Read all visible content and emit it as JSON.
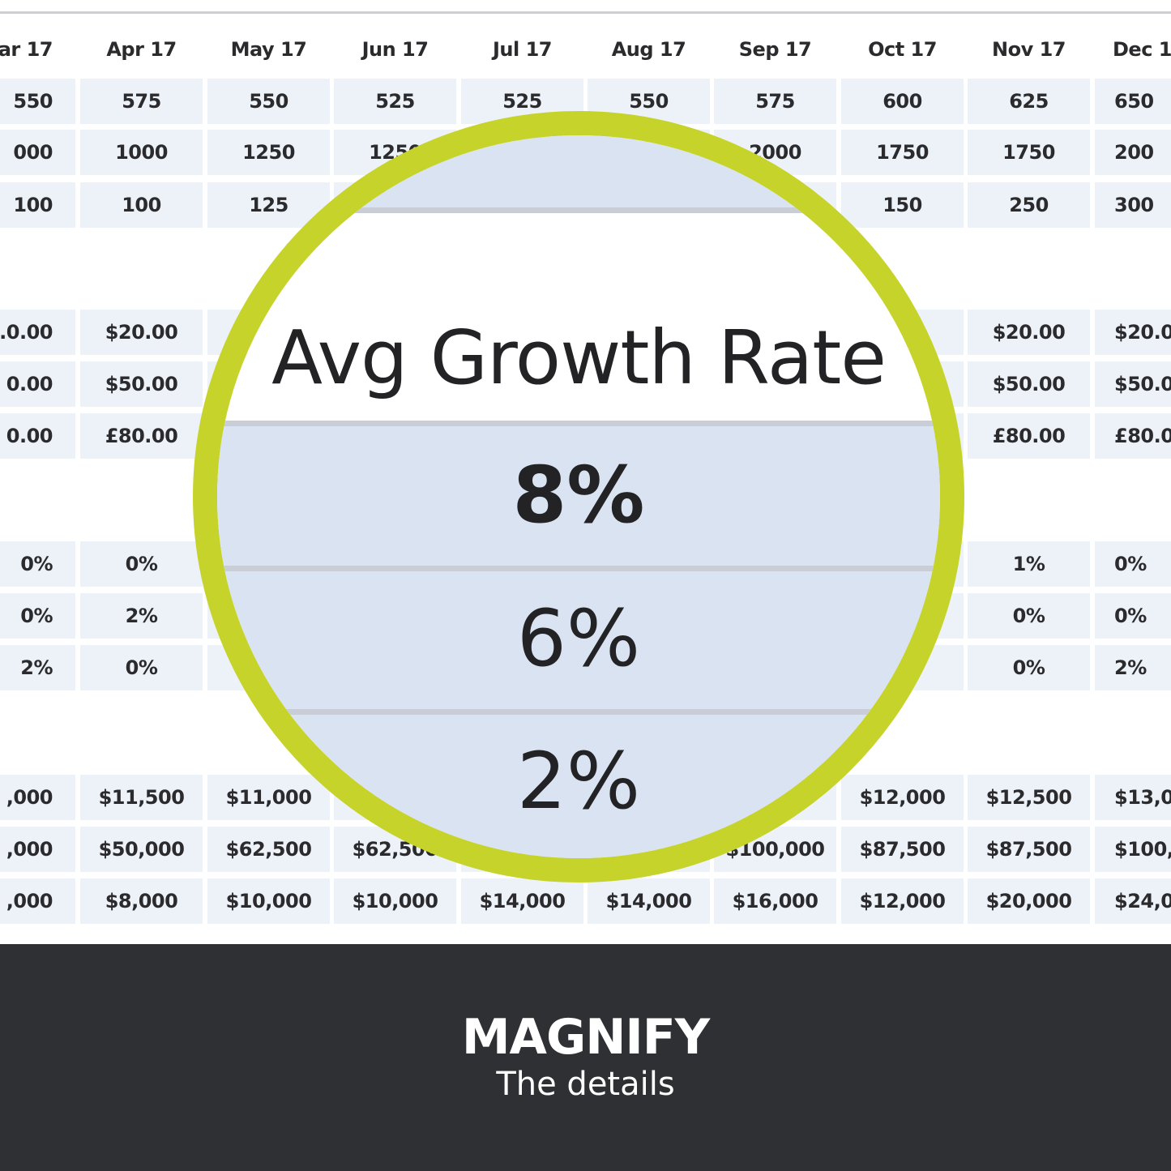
{
  "table": {
    "headers": [
      "ar 17",
      "Apr 17",
      "May 17",
      "Jun 17",
      "Jul 17",
      "Aug 17",
      "Sep 17",
      "Oct 17",
      "Nov 17",
      "Dec 1"
    ],
    "rows": [
      [
        "550",
        "575",
        "550",
        "525",
        "525",
        "550",
        "575",
        "600",
        "625",
        "650"
      ],
      [
        "000",
        "1000",
        "1250",
        "1250",
        "",
        "",
        "2000",
        "1750",
        "1750",
        "200"
      ],
      [
        "100",
        "100",
        "125",
        "",
        "",
        "",
        "",
        "150",
        "250",
        "300"
      ],
      [
        ".0.00",
        "$20.00",
        "",
        "",
        "",
        "",
        "",
        "",
        "$20.00",
        "$20.0"
      ],
      [
        "0.00",
        "$50.00",
        "",
        "",
        "",
        "",
        "",
        "",
        "$50.00",
        "$50.0"
      ],
      [
        "0.00",
        "£80.00",
        "",
        "",
        "",
        "",
        "",
        "",
        "£80.00",
        "£80.0"
      ],
      [
        "0%",
        "0%",
        "",
        "",
        "",
        "",
        "",
        "",
        "1%",
        "0%"
      ],
      [
        "0%",
        "2%",
        "",
        "",
        "",
        "",
        "",
        "",
        "0%",
        "0%"
      ],
      [
        "2%",
        "0%",
        "",
        "",
        "",
        "",
        "",
        "",
        "0%",
        "2%"
      ],
      [
        ",000",
        "$11,500",
        "$11,000",
        "",
        "",
        "",
        "",
        "$12,000",
        "$12,500",
        "$13,0"
      ],
      [
        ",000",
        "$50,000",
        "$62,500",
        "$62,500",
        "",
        "",
        "$100,000",
        "$87,500",
        "$87,500",
        "$100,0"
      ],
      [
        ",000",
        "$8,000",
        "$10,000",
        "$10,000",
        "$14,000",
        "$14,000",
        "$16,000",
        "$12,000",
        "$20,000",
        "$24,0"
      ]
    ]
  },
  "magnifier": {
    "title": "Avg Growth Rate",
    "values": [
      "8%",
      "6%",
      "2%"
    ],
    "accent_color": "#c6d32a"
  },
  "footer": {
    "title": "MAGNIFY",
    "subtitle": "The details"
  }
}
